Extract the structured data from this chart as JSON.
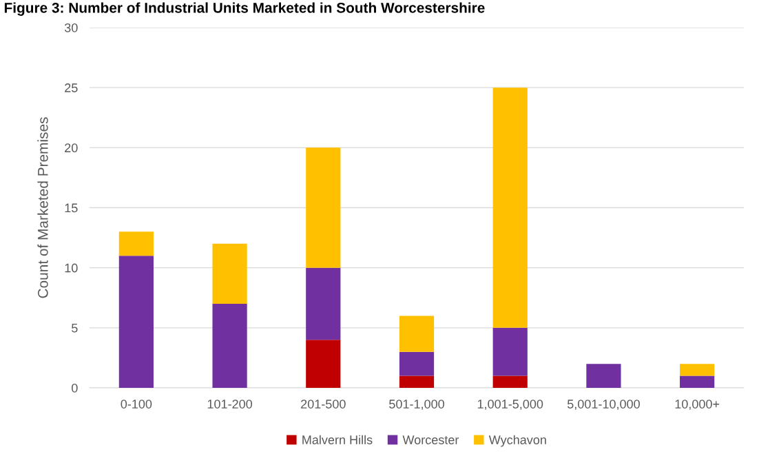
{
  "chart_data": {
    "type": "bar",
    "title": "Figure 3: Number of Industrial Units Marketed in South Worcestershire",
    "ylabel": "Count of Marketed Premises",
    "categories": [
      "0-100",
      "101-200",
      "201-500",
      "501-1,000",
      "1,001-5,000",
      "5,001-10,000",
      "10,000+"
    ],
    "series": [
      {
        "name": "Malvern Hills",
        "color": "#c00000",
        "values": [
          0,
          0,
          4,
          1,
          1,
          0,
          0
        ]
      },
      {
        "name": "Worcester",
        "color": "#7030a0",
        "values": [
          11,
          7,
          6,
          2,
          4,
          2,
          1
        ]
      },
      {
        "name": "Wychavon",
        "color": "#ffc000",
        "values": [
          2,
          5,
          10,
          3,
          20,
          0,
          1
        ]
      }
    ],
    "stacked": true,
    "ylim": [
      0,
      30
    ],
    "yticks": [
      0,
      5,
      10,
      15,
      20,
      25,
      30
    ],
    "grid": "y",
    "legend": "bottom"
  }
}
